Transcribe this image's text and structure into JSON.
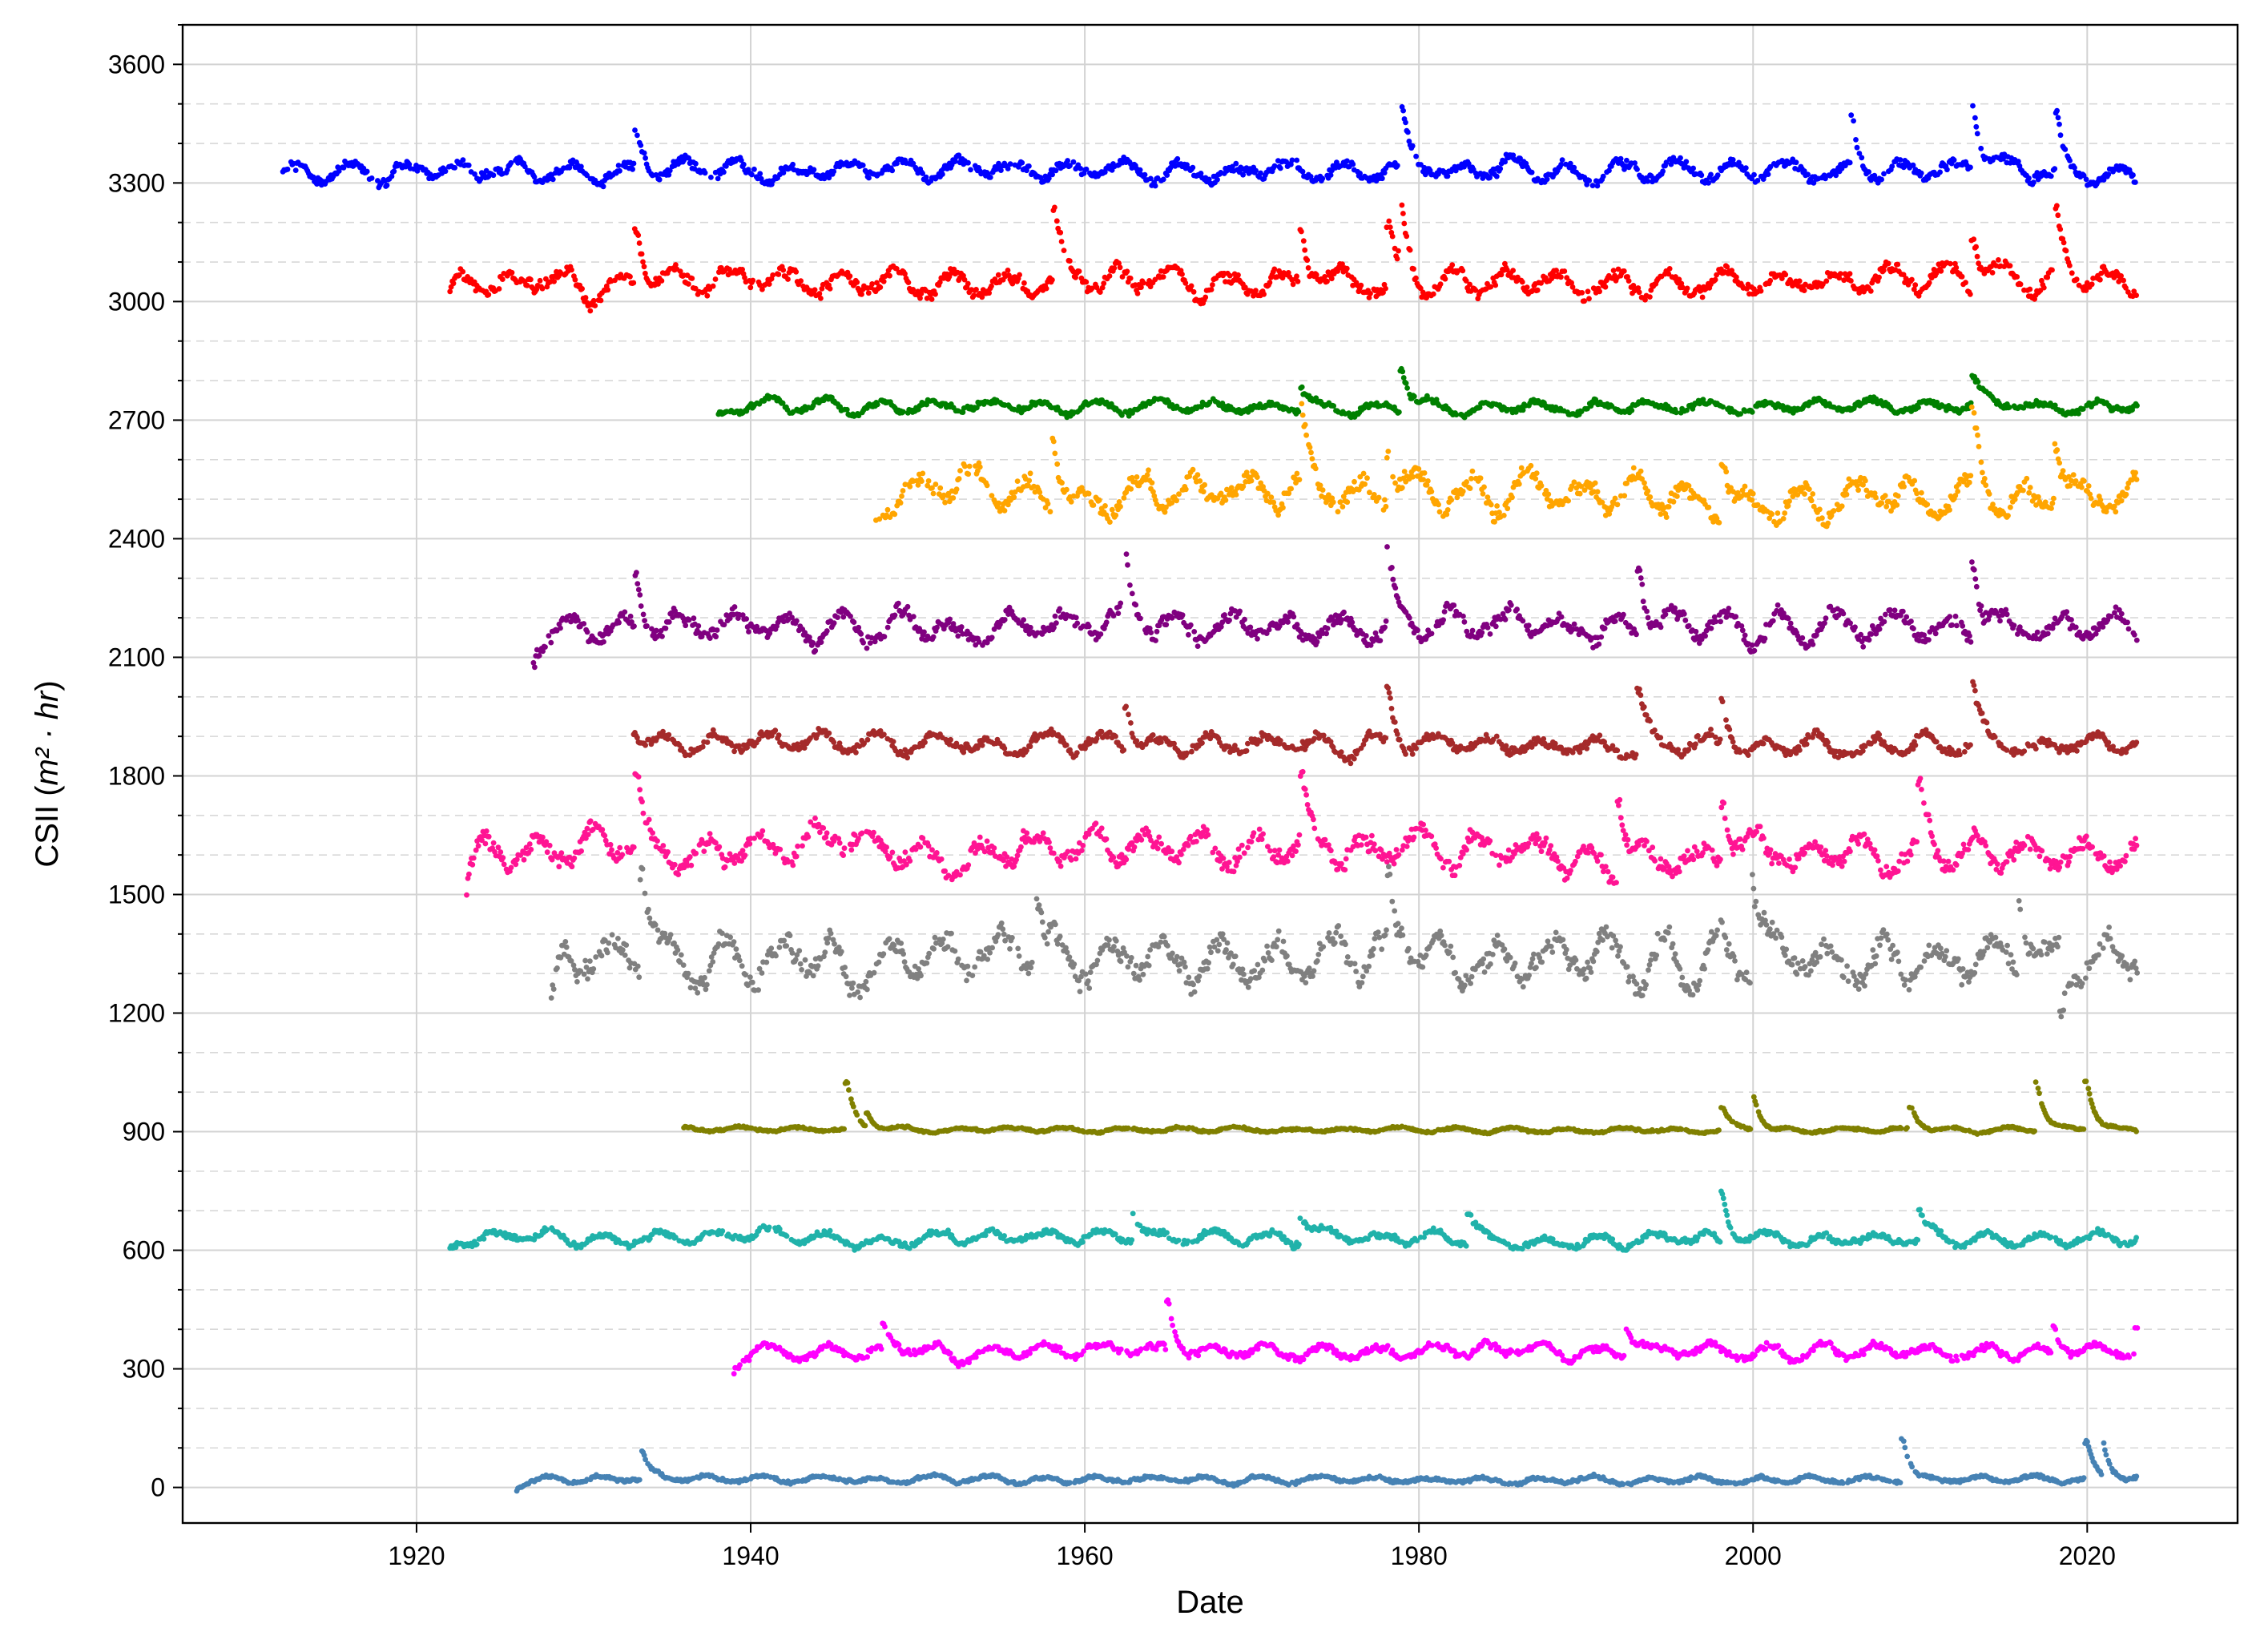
{
  "chart_data": {
    "type": "scatter",
    "title": "",
    "xlabel": "Date",
    "ylabel_text": "CSII (",
    "ylabel_math": "m² · hr",
    "ylabel_close": ")",
    "xlim": [
      1906,
      2029
    ],
    "ylim": [
      -90,
      3700
    ],
    "x_ticks": [
      1920,
      1940,
      1960,
      1980,
      2000,
      2020
    ],
    "y_ticks": [
      0,
      300,
      600,
      900,
      1200,
      1500,
      1800,
      2100,
      2400,
      2700,
      3000,
      3300,
      3600
    ],
    "y_minor_step": 100,
    "grid": true,
    "legend": "none",
    "series": [
      {
        "color": "#0000ff",
        "start": 1912.0,
        "end": 2023.0,
        "base": 3330,
        "amp": 35,
        "spikes": [
          [
            1933.2,
            3410
          ],
          [
            1979.0,
            3480
          ],
          [
            2006.0,
            3450
          ],
          [
            2013.2,
            3500
          ],
          [
            2018.2,
            3480
          ]
        ]
      },
      {
        "color": "#ff0000",
        "start": 1922.0,
        "end": 2023.0,
        "base": 3050,
        "amp": 45,
        "spikes": [
          [
            1922.0,
            3000
          ],
          [
            1933.2,
            3190
          ],
          [
            1958.2,
            3230
          ],
          [
            1973.0,
            3180
          ],
          [
            1978.2,
            3200
          ],
          [
            1979.0,
            3200
          ],
          [
            2013.2,
            3200
          ],
          [
            2018.2,
            3210
          ]
        ]
      },
      {
        "color": "#008000",
        "start": 1938.0,
        "end": 2023.0,
        "base": 2735,
        "amp": 22,
        "spikes": [
          [
            1938.0,
            2705
          ],
          [
            1973.0,
            2790
          ],
          [
            1979.0,
            2840
          ],
          [
            2013.2,
            2800
          ]
        ]
      },
      {
        "color": "#ffa500",
        "start": 1947.5,
        "end": 2023.0,
        "base": 2510,
        "amp": 60,
        "spikes": [
          [
            1947.5,
            2440
          ],
          [
            1958.2,
            2700
          ],
          [
            1973.0,
            2690
          ],
          [
            1978.2,
            2640
          ],
          [
            1998.2,
            2660
          ],
          [
            2013.2,
            2690
          ],
          [
            2018.2,
            2650
          ]
        ]
      },
      {
        "color": "#800080",
        "start": 1927.0,
        "end": 2023.0,
        "base": 2180,
        "amp": 50,
        "spikes": [
          [
            1927.0,
            2100
          ],
          [
            1933.2,
            2310
          ],
          [
            1962.5,
            2310
          ],
          [
            1978.2,
            2350
          ],
          [
            1993.2,
            2340
          ],
          [
            2013.2,
            2380
          ]
        ]
      },
      {
        "color": "#a52a2a",
        "start": 1933.0,
        "end": 2023.0,
        "base": 1880,
        "amp": 35,
        "spikes": [
          [
            1933.0,
            1930
          ],
          [
            1962.5,
            2000
          ],
          [
            1978.2,
            2020
          ],
          [
            1993.2,
            2040
          ],
          [
            1998.2,
            2000
          ],
          [
            2013.2,
            2020
          ]
        ]
      },
      {
        "color": "#ff1493",
        "start": 1923.0,
        "end": 2023.0,
        "base": 1610,
        "amp": 60,
        "spikes": [
          [
            1923.0,
            1510
          ],
          [
            1933.2,
            1800
          ],
          [
            1973.0,
            1780
          ],
          [
            1992.0,
            1800
          ],
          [
            2010.0,
            1750
          ],
          [
            1998.2,
            1760
          ]
        ]
      },
      {
        "color": "#808080",
        "start": 1928.0,
        "end": 2023.0,
        "base": 1340,
        "amp": 80,
        "spikes": [
          [
            1928.0,
            1200
          ],
          [
            1933.5,
            1600
          ],
          [
            1957.0,
            1550
          ],
          [
            1978.2,
            1520
          ],
          [
            2000.0,
            1580
          ],
          [
            2016.0,
            1520
          ],
          [
            2018.5,
            1180
          ]
        ]
      },
      {
        "color": "#808000",
        "start": 1936.0,
        "end": 2023.0,
        "base": 905,
        "amp": 8,
        "spikes": [
          [
            1945.8,
            1020
          ],
          [
            1947.0,
            940
          ],
          [
            1998.2,
            960
          ],
          [
            2000.0,
            1000
          ],
          [
            2017.0,
            1030
          ],
          [
            2020.0,
            1030
          ],
          [
            2009.5,
            960
          ]
        ]
      },
      {
        "color": "#20b2aa",
        "start": 1922.0,
        "end": 2023.0,
        "base": 630,
        "amp": 22,
        "spikes": [
          [
            1922.0,
            600
          ],
          [
            1963.0,
            700
          ],
          [
            1973.0,
            700
          ],
          [
            1998.2,
            750
          ],
          [
            2010.0,
            700
          ],
          [
            1983.0,
            700
          ]
        ]
      },
      {
        "color": "#ff00ff",
        "start": 1939.0,
        "end": 2023.0,
        "base": 345,
        "amp": 25,
        "spikes": [
          [
            1939.0,
            300
          ],
          [
            1948.0,
            410
          ],
          [
            1965.0,
            470
          ],
          [
            1992.5,
            420
          ],
          [
            2018.0,
            420
          ],
          [
            2023.0,
            410
          ]
        ]
      },
      {
        "color": "#4682b4",
        "start": 1926.0,
        "end": 2023.0,
        "base": 20,
        "amp": 12,
        "spikes": [
          [
            1926.0,
            0
          ],
          [
            1933.5,
            90
          ],
          [
            2009.0,
            130
          ],
          [
            2020.0,
            110
          ],
          [
            2021.0,
            100
          ]
        ]
      }
    ]
  }
}
